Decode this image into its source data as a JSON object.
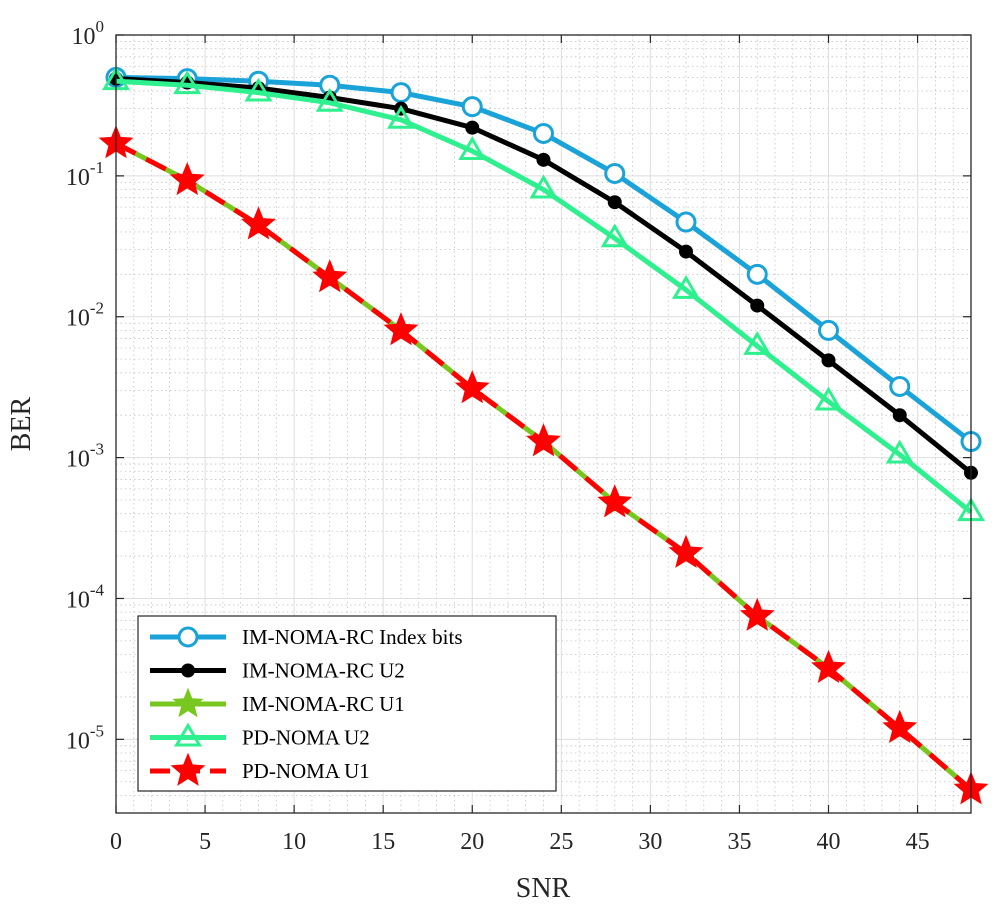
{
  "chart_data": {
    "type": "line",
    "xlabel": "SNR",
    "ylabel": "BER",
    "yscale": "log",
    "xlim": [
      0,
      48
    ],
    "ylim": [
      3e-06,
      1
    ],
    "grid": true,
    "minor_grid": true,
    "legend_position": "bottom-left",
    "x_ticks": [
      0,
      5,
      10,
      15,
      20,
      25,
      30,
      35,
      40,
      45
    ],
    "y_ticks": [
      {
        "value": 1,
        "base": "10",
        "exp": "0"
      },
      {
        "value": 0.1,
        "base": "10",
        "exp": "-1"
      },
      {
        "value": 0.01,
        "base": "10",
        "exp": "-2"
      },
      {
        "value": 0.001,
        "base": "10",
        "exp": "-3"
      },
      {
        "value": 0.0001,
        "base": "10",
        "exp": "-4"
      },
      {
        "value": 1e-05,
        "base": "10",
        "exp": "-5"
      }
    ],
    "x": [
      0,
      4,
      8,
      12,
      16,
      20,
      24,
      28,
      32,
      36,
      40,
      44,
      48
    ],
    "series": [
      {
        "name": "IM-NOMA-RC Index bits",
        "color": "#1aa3d9",
        "marker": "circle",
        "dash": "solid",
        "values": [
          0.5,
          0.49,
          0.47,
          0.44,
          0.39,
          0.31,
          0.2,
          0.104,
          0.047,
          0.02,
          0.008,
          0.0032,
          0.0013
        ]
      },
      {
        "name": "IM-NOMA-RC U2",
        "color": "#000000",
        "marker": "dot",
        "dash": "solid",
        "values": [
          0.49,
          0.46,
          0.42,
          0.36,
          0.3,
          0.22,
          0.13,
          0.065,
          0.029,
          0.012,
          0.0049,
          0.002,
          0.00078
        ]
      },
      {
        "name": "IM-NOMA-RC U1",
        "color": "#77c71f",
        "marker": "star",
        "dash": "solid",
        "values": [
          0.17,
          0.093,
          0.045,
          0.019,
          0.008,
          0.0031,
          0.0013,
          0.00048,
          0.00021,
          7.5e-05,
          3.2e-05,
          1.2e-05,
          4.4e-06
        ]
      },
      {
        "name": "PD-NOMA U2",
        "color": "#2ef08e",
        "marker": "triangle",
        "dash": "solid",
        "values": [
          0.47,
          0.44,
          0.39,
          0.33,
          0.25,
          0.15,
          0.08,
          0.036,
          0.0155,
          0.0062,
          0.0025,
          0.00105,
          0.00041
        ]
      },
      {
        "name": "PD-NOMA U1",
        "color": "#ff0000",
        "marker": "star",
        "dash": "dash",
        "values": [
          0.17,
          0.093,
          0.045,
          0.019,
          0.008,
          0.0031,
          0.0013,
          0.00048,
          0.00021,
          7.5e-05,
          3.2e-05,
          1.2e-05,
          4.4e-06
        ]
      }
    ]
  }
}
